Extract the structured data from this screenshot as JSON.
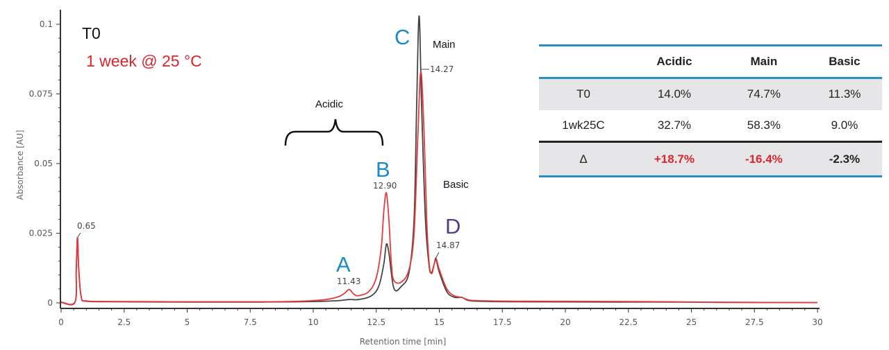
{
  "chart_data": {
    "type": "line",
    "xlabel": "Retention time [min]",
    "ylabel": "Absorbance [AU]",
    "xlim": [
      0,
      30
    ],
    "ylim": [
      0,
      0.104
    ],
    "x_ticks": [
      "0",
      "2.5",
      "5",
      "7.5",
      "10",
      "12.5",
      "15",
      "17.5",
      "20",
      "22.5",
      "25",
      "27.5",
      "30"
    ],
    "y_ticks": [
      "0",
      "0.025",
      "0.05",
      "0.075",
      "0.1"
    ],
    "grid": false,
    "legend": {
      "placement": "top-left",
      "entries": [
        {
          "label": "T0",
          "color": "#111111"
        },
        {
          "label": "1 week @ 25 °C",
          "color": "#d9262e"
        }
      ]
    },
    "series": [
      {
        "name": "T0",
        "color": "#444444",
        "x": [
          0,
          0.55,
          0.6,
          0.65,
          0.7,
          0.8,
          1.0,
          2,
          5,
          8,
          9.5,
          10.5,
          11.0,
          11.43,
          11.8,
          12.3,
          12.6,
          12.8,
          12.9,
          13.0,
          13.2,
          13.5,
          13.8,
          14.0,
          14.1,
          14.2,
          14.3,
          14.45,
          14.6,
          14.7,
          14.8,
          14.87,
          15.0,
          15.3,
          15.6,
          15.9,
          16.1,
          16.5,
          18,
          22,
          24,
          26,
          30
        ],
        "y": [
          0.0002,
          0.0002,
          0.012,
          0.0235,
          0.012,
          0.002,
          0.0006,
          0.0004,
          0.0003,
          0.0003,
          0.0004,
          0.0006,
          0.0008,
          0.0012,
          0.0012,
          0.0025,
          0.006,
          0.014,
          0.021,
          0.018,
          0.0052,
          0.006,
          0.011,
          0.03,
          0.07,
          0.103,
          0.07,
          0.03,
          0.013,
          0.011,
          0.014,
          0.0155,
          0.011,
          0.004,
          0.002,
          0.002,
          0.001,
          0.0006,
          0.0004,
          0.0003,
          0.0003,
          0.0002,
          0.0001
        ]
      },
      {
        "name": "1 week @ 25 °C",
        "color": "#e8383f",
        "x": [
          0,
          0.55,
          0.6,
          0.65,
          0.7,
          0.8,
          1.0,
          2,
          5,
          8,
          9.5,
          10.5,
          11.0,
          11.25,
          11.43,
          11.6,
          11.8,
          12.2,
          12.5,
          12.7,
          12.8,
          12.9,
          13.0,
          13.1,
          13.2,
          13.5,
          13.8,
          14.0,
          14.15,
          14.27,
          14.4,
          14.5,
          14.6,
          14.7,
          14.8,
          14.87,
          15.0,
          15.3,
          15.6,
          15.9,
          16.1,
          16.5,
          18,
          22,
          24,
          26,
          30
        ],
        "y": [
          0.0003,
          0.0003,
          0.012,
          0.0235,
          0.012,
          0.002,
          0.0007,
          0.0005,
          0.0004,
          0.0004,
          0.0006,
          0.0012,
          0.0022,
          0.0035,
          0.0048,
          0.0032,
          0.0026,
          0.004,
          0.009,
          0.02,
          0.033,
          0.0395,
          0.03,
          0.014,
          0.008,
          0.0075,
          0.012,
          0.025,
          0.06,
          0.083,
          0.06,
          0.03,
          0.014,
          0.0105,
          0.014,
          0.016,
          0.012,
          0.005,
          0.0025,
          0.002,
          0.0012,
          0.0008,
          0.0006,
          0.0005,
          0.0004,
          0.0002,
          0.0001
        ]
      }
    ],
    "peak_labels": [
      {
        "text": "0.65",
        "x": 0.65
      },
      {
        "text": "11.43",
        "x": 11.43
      },
      {
        "text": "12.90",
        "x": 12.9
      },
      {
        "text": "14.27",
        "x": 14.27
      },
      {
        "text": "14.87",
        "x": 14.87
      }
    ],
    "annotations": {
      "acidic": "Acidic",
      "main": "Main",
      "basic": "Basic",
      "letters": [
        {
          "text": "A",
          "color": "#1a8bc4"
        },
        {
          "text": "B",
          "color": "#1a8bc4"
        },
        {
          "text": "C",
          "color": "#1a8bc4"
        },
        {
          "text": "D",
          "color": "#5b3a8c"
        }
      ]
    }
  },
  "table": {
    "headers": [
      "",
      "Acidic",
      "Main",
      "Basic"
    ],
    "rows": [
      {
        "label": "T0",
        "values": [
          "14.0%",
          "74.7%",
          "11.3%"
        ]
      },
      {
        "label": "1wk25C",
        "values": [
          "32.7%",
          "58.3%",
          "9.0%"
        ]
      }
    ],
    "delta": {
      "label": "Δ",
      "values": [
        "+18.7%",
        "-16.4%",
        "-2.3%"
      ],
      "colors": [
        "#d9262e",
        "#d9262e",
        "#222222"
      ]
    }
  }
}
